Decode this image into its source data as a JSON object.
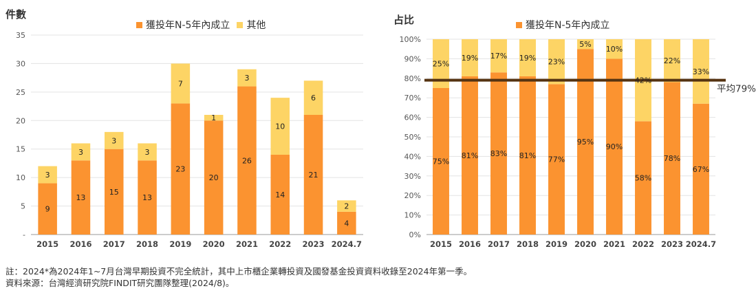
{
  "colors": {
    "primary": "#FB9330",
    "other": "#FDD465",
    "avg_line": "#553311",
    "grid": "#e3e3e3",
    "axis": "#999999"
  },
  "chart_data": [
    {
      "type": "bar",
      "stacked": true,
      "ylabel": "件數",
      "categories": [
        "2015",
        "2016",
        "2017",
        "2018",
        "2019",
        "2020",
        "2021",
        "2022",
        "2023",
        "2024.7"
      ],
      "series": [
        {
          "name": "獲投年N-5年內成立",
          "values": [
            9,
            13,
            15,
            13,
            23,
            20,
            26,
            14,
            21,
            4
          ]
        },
        {
          "name": "其他",
          "values": [
            3,
            3,
            3,
            3,
            7,
            1,
            3,
            10,
            6,
            2
          ]
        }
      ],
      "ylim": [
        0,
        35
      ],
      "yticks": [
        "-",
        "5",
        "10",
        "15",
        "20",
        "25",
        "30",
        "35"
      ],
      "grid": true,
      "legend": "top-center"
    },
    {
      "type": "bar",
      "stacked": true,
      "percent": true,
      "ylabel": "占比",
      "categories": [
        "2015",
        "2016",
        "2017",
        "2018",
        "2019",
        "2020",
        "2021",
        "2022",
        "2023",
        "2024.7"
      ],
      "series": [
        {
          "name": "獲投年N-5年內成立",
          "values": [
            75,
            81,
            83,
            81,
            77,
            95,
            90,
            58,
            78,
            67
          ],
          "labels": [
            "75%",
            "81%",
            "83%",
            "81%",
            "77%",
            "95%",
            "90%",
            "58%",
            "78%",
            "67%"
          ]
        },
        {
          "name": "",
          "values": [
            25,
            19,
            17,
            19,
            23,
            5,
            10,
            42,
            22,
            33
          ],
          "labels": [
            "25%",
            "19%",
            "17%",
            "19%",
            "23%",
            "5%",
            "10%",
            "42%",
            "22%",
            "33%"
          ]
        }
      ],
      "ylim": [
        0,
        100
      ],
      "yticks": [
        "0%",
        "10%",
        "20%",
        "30%",
        "40%",
        "50%",
        "60%",
        "70%",
        "80%",
        "90%",
        "100%"
      ],
      "average": {
        "value": 79,
        "label": "平均79%"
      },
      "grid": true,
      "legend": "top-center"
    }
  ],
  "notes": [
    "註：2024*為2024年1~7月台灣早期投資不完全統計，其中上市櫃企業轉投資及國發基金投資資料收錄至2024年第一季。",
    "資料來源：台灣經濟研究院FINDIT研究團隊整理(2024/8)。"
  ]
}
